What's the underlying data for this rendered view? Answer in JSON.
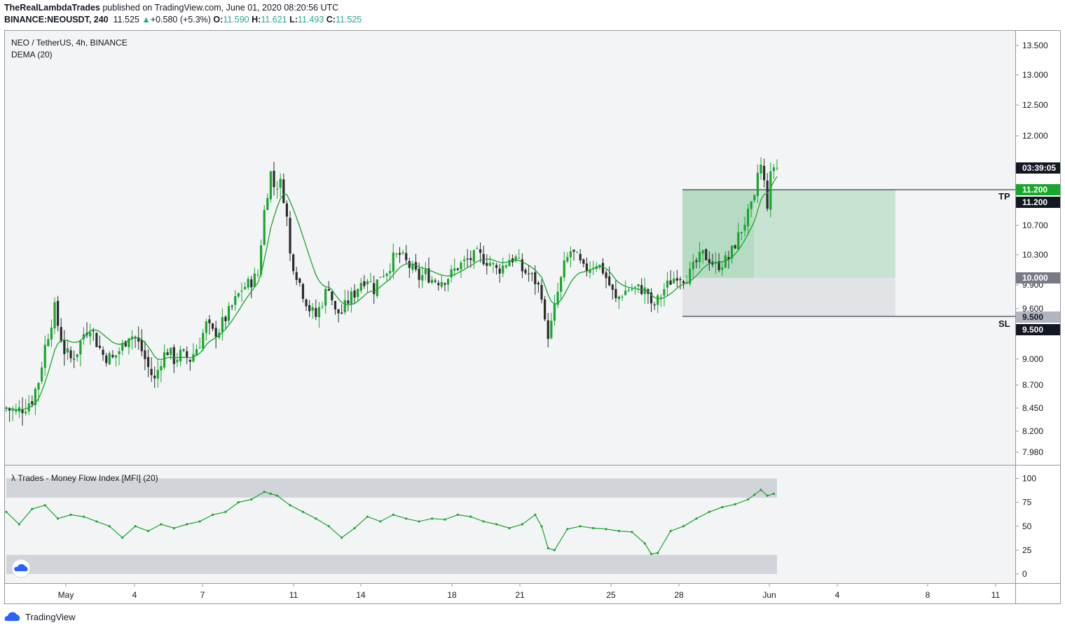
{
  "header": {
    "author": "TheRealLambdaTrades",
    "published_text": "published on TradingView.com, June 01, 2020 08:20:56 UTC",
    "symbol": "BINANCE:NEOUSDT, 240",
    "last": "11.525",
    "change": "+0.580 (+5.3%)",
    "o_label": "O:",
    "o": "11.590",
    "h_label": "H:",
    "h": "11.621",
    "l_label": "L:",
    "l": "11.493",
    "c_label": "C:",
    "c": "11.525"
  },
  "legend": {
    "title": "NEO / TetherUS, 4h, BINANCE",
    "indicator": "DEMA (20)",
    "mfi_title": "λ Trades - Money Flow Index [MFI] (20)"
  },
  "footer": {
    "brand": "TradingView"
  },
  "colors": {
    "up": "#26a69a",
    "candle_up": "#1aa52f",
    "candle_down": "#2b2b2b",
    "dema": "#1aa52f",
    "mfi": "#1aa52f",
    "tp_zone": "#a5d6b4",
    "sl_zone": "#e1e3e6",
    "bg": "#f2f4f6"
  },
  "chart_data": [
    {
      "type": "candlestick",
      "title": "NEO / TetherUS, 4h, BINANCE",
      "y_ticks": [
        "13.500",
        "13.000",
        "12.500",
        "12.000",
        "10.700",
        "10.300",
        "9.900",
        "9.600",
        "9.000",
        "8.700",
        "8.450",
        "8.200",
        "7.980"
      ],
      "x_ticks": [
        "May",
        "4",
        "7",
        "11",
        "14",
        "18",
        "21",
        "25",
        "28",
        "Jun",
        "4",
        "8",
        "11"
      ],
      "price_labels": {
        "countdown": "03:39:05",
        "tp_top": "11.200",
        "tp": "11.200",
        "entry": "10.000",
        "sl_top": "9.500",
        "sl": "9.500"
      },
      "annotations": {
        "tp_label": "TP",
        "sl_label": "SL"
      },
      "anchors": [
        [
          0,
          8.45
        ],
        [
          3,
          8.4
        ],
        [
          6,
          8.48
        ],
        [
          8,
          8.55
        ],
        [
          10,
          8.75
        ],
        [
          12,
          9.15
        ],
        [
          14,
          9.45
        ],
        [
          15,
          9.6
        ],
        [
          16,
          9.4
        ],
        [
          18,
          9.1
        ],
        [
          20,
          9.0
        ],
        [
          22,
          9.1
        ],
        [
          24,
          9.3
        ],
        [
          26,
          9.4
        ],
        [
          28,
          9.2
        ],
        [
          30,
          9.05
        ],
        [
          33,
          9.0
        ],
        [
          36,
          9.15
        ],
        [
          38,
          9.3
        ],
        [
          40,
          9.25
        ],
        [
          42,
          9.1
        ],
        [
          44,
          8.9
        ],
        [
          46,
          8.75
        ],
        [
          48,
          9.0
        ],
        [
          50,
          9.1
        ],
        [
          52,
          9.0
        ],
        [
          54,
          9.05
        ],
        [
          57,
          9.0
        ],
        [
          60,
          9.2
        ],
        [
          62,
          9.4
        ],
        [
          64,
          9.3
        ],
        [
          66,
          9.35
        ],
        [
          69,
          9.55
        ],
        [
          71,
          9.7
        ],
        [
          73,
          9.85
        ],
        [
          76,
          9.95
        ],
        [
          78,
          10.05
        ],
        [
          80,
          10.9
        ],
        [
          82,
          11.45
        ],
        [
          83,
          11.25
        ],
        [
          85,
          11.3
        ],
        [
          86,
          11.1
        ],
        [
          87,
          10.8
        ],
        [
          88,
          10.3
        ],
        [
          90,
          10.05
        ],
        [
          92,
          9.8
        ],
        [
          94,
          9.6
        ],
        [
          96,
          9.5
        ],
        [
          98,
          9.7
        ],
        [
          100,
          9.9
        ],
        [
          102,
          9.55
        ],
        [
          104,
          9.55
        ],
        [
          106,
          9.7
        ],
        [
          108,
          9.8
        ],
        [
          110,
          9.95
        ],
        [
          112,
          10.0
        ],
        [
          114,
          9.85
        ],
        [
          116,
          10.05
        ],
        [
          118,
          10.1
        ],
        [
          120,
          10.25
        ],
        [
          122,
          10.3
        ],
        [
          124,
          10.2
        ],
        [
          126,
          10.1
        ],
        [
          128,
          10.0
        ],
        [
          130,
          10.05
        ],
        [
          132,
          9.98
        ],
        [
          134,
          9.96
        ],
        [
          136,
          9.98
        ],
        [
          138,
          10.05
        ],
        [
          140,
          10.15
        ],
        [
          142,
          10.2
        ],
        [
          144,
          10.25
        ],
        [
          146,
          10.3
        ],
        [
          148,
          10.25
        ],
        [
          150,
          10.2
        ],
        [
          152,
          10.1
        ],
        [
          154,
          10.15
        ],
        [
          156,
          10.25
        ],
        [
          158,
          10.25
        ],
        [
          160,
          10.1
        ],
        [
          162,
          10.05
        ],
        [
          164,
          9.95
        ],
        [
          166,
          9.8
        ],
        [
          167,
          9.4
        ],
        [
          168,
          9.3
        ],
        [
          169,
          9.4
        ],
        [
          171,
          9.8
        ],
        [
          173,
          10.15
        ],
        [
          175,
          10.35
        ],
        [
          177,
          10.25
        ],
        [
          179,
          10.1
        ],
        [
          181,
          10.15
        ],
        [
          183,
          10.2
        ],
        [
          185,
          10.1
        ],
        [
          187,
          9.9
        ],
        [
          189,
          9.7
        ],
        [
          191,
          9.8
        ],
        [
          193,
          9.85
        ],
        [
          195,
          9.85
        ],
        [
          197,
          9.85
        ],
        [
          199,
          9.8
        ],
        [
          200,
          9.6
        ],
        [
          202,
          9.7
        ],
        [
          204,
          9.85
        ],
        [
          206,
          9.95
        ],
        [
          208,
          10.05
        ],
        [
          210,
          10.0
        ],
        [
          212,
          10.05
        ],
        [
          214,
          10.2
        ],
        [
          216,
          10.3
        ],
        [
          218,
          10.25
        ],
        [
          220,
          10.15
        ],
        [
          222,
          10.2
        ],
        [
          224,
          10.25
        ],
        [
          226,
          10.45
        ],
        [
          228,
          10.65
        ],
        [
          230,
          10.85
        ],
        [
          232,
          11.05
        ],
        [
          233,
          11.45
        ],
        [
          234,
          11.55
        ],
        [
          235,
          11.3
        ],
        [
          236,
          11.0
        ],
        [
          237,
          11.4
        ],
        [
          238,
          11.55
        ],
        [
          239,
          11.525
        ]
      ],
      "tp_zone": {
        "entry": 10.0,
        "take_profit": 11.2,
        "stop_loss": 9.5
      },
      "indicator": {
        "name": "DEMA (20)"
      }
    },
    {
      "type": "line",
      "title": "λ Trades - Money Flow Index [MFI] (20)",
      "y_ticks": [
        "100",
        "75",
        "50",
        "25",
        "0"
      ],
      "bands": {
        "overbought": [
          80,
          100
        ],
        "oversold": [
          0,
          20
        ]
      },
      "series": [
        {
          "x": [
            0,
            4,
            8,
            12,
            16,
            20,
            24,
            28,
            32,
            36,
            40,
            44,
            48,
            52,
            56,
            60,
            64,
            68,
            72,
            76,
            80,
            82,
            84,
            88,
            92,
            96,
            100,
            104,
            108,
            112,
            116,
            120,
            124,
            128,
            132,
            136,
            140,
            144,
            148,
            152,
            156,
            160,
            164,
            166,
            168,
            170,
            174,
            178,
            182,
            186,
            190,
            194,
            198,
            200,
            202,
            206,
            210,
            214,
            218,
            222,
            226,
            230,
            232,
            234,
            236,
            238
          ],
          "values": [
            65,
            52,
            68,
            72,
            58,
            62,
            60,
            55,
            50,
            38,
            50,
            45,
            52,
            48,
            52,
            55,
            62,
            65,
            75,
            78,
            86,
            84,
            82,
            72,
            65,
            58,
            50,
            38,
            48,
            60,
            55,
            62,
            58,
            55,
            58,
            57,
            62,
            60,
            55,
            52,
            48,
            52,
            62,
            50,
            27,
            25,
            47,
            50,
            48,
            47,
            45,
            44,
            32,
            21,
            22,
            45,
            50,
            58,
            65,
            70,
            73,
            78,
            83,
            88,
            82,
            84
          ]
        }
      ]
    }
  ]
}
